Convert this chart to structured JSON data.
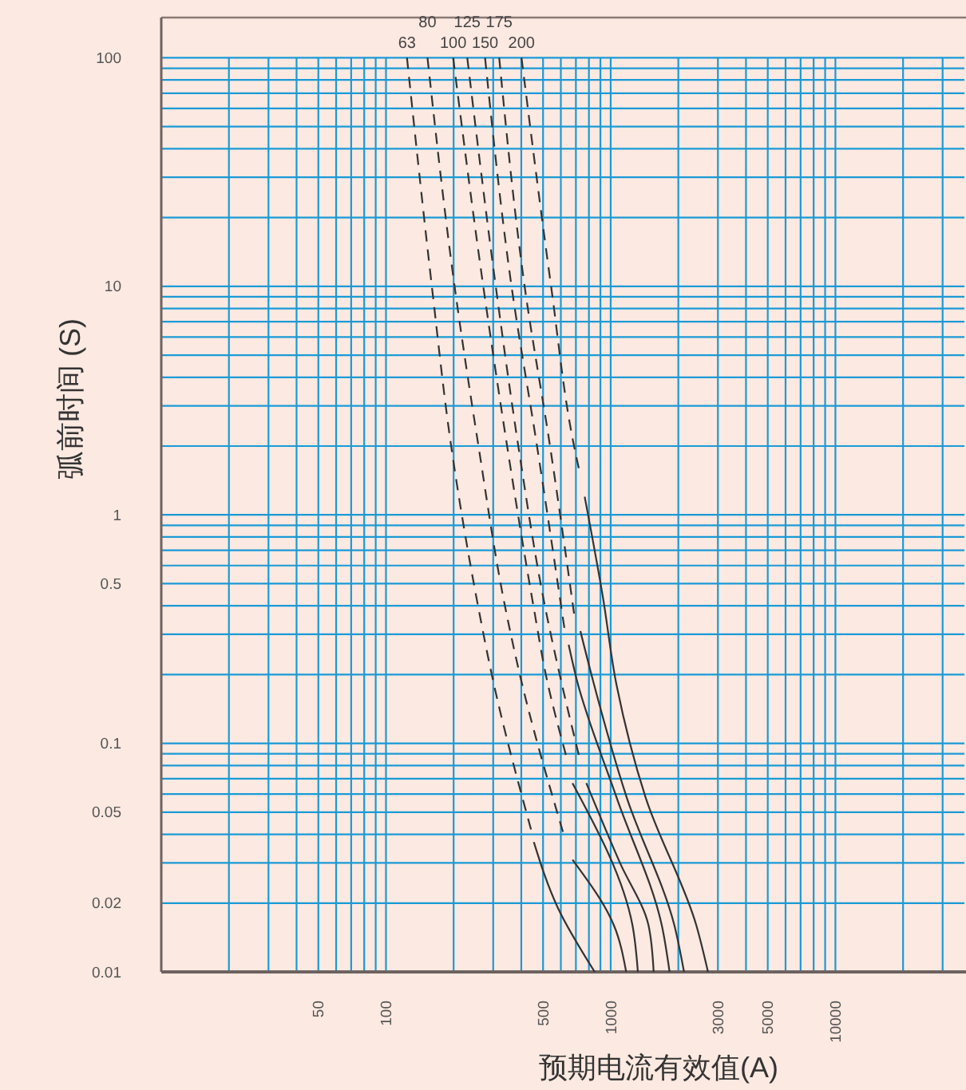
{
  "chart_data": {
    "type": "line",
    "xlabel": "预期电流有效值(A)",
    "ylabel": "弧前时间 (S)",
    "log": "xy",
    "grid": true,
    "xlim": [
      10,
      37500
    ],
    "ylim": [
      0.01,
      150
    ],
    "xticks": [
      {
        "value": 20,
        "label": null
      },
      {
        "value": 30,
        "label": null
      },
      {
        "value": 40,
        "label": null
      },
      50,
      {
        "value": 60,
        "label": null
      },
      {
        "value": 70,
        "label": null
      },
      {
        "value": 80,
        "label": null
      },
      {
        "value": 90,
        "label": null
      },
      100,
      {
        "value": 200,
        "label": null
      },
      {
        "value": 300,
        "label": null
      },
      {
        "value": 400,
        "label": null
      },
      500,
      {
        "value": 600,
        "label": null
      },
      {
        "value": 700,
        "label": null
      },
      {
        "value": 800,
        "label": null
      },
      {
        "value": 900,
        "label": null
      },
      1000,
      {
        "value": 2000,
        "label": null
      },
      3000,
      {
        "value": 4000,
        "label": null
      },
      5000,
      {
        "value": 6000,
        "label": null
      },
      {
        "value": 7000,
        "label": null
      },
      {
        "value": 8000,
        "label": null
      },
      {
        "value": 9000,
        "label": null
      },
      10000,
      {
        "value": 20000,
        "label": null
      },
      {
        "value": 30000,
        "label": null
      }
    ],
    "yticks": [
      0.01,
      0.02,
      {
        "value": 0.03,
        "label": null
      },
      {
        "value": 0.04,
        "label": null
      },
      0.05,
      {
        "value": 0.06,
        "label": null
      },
      {
        "value": 0.07,
        "label": null
      },
      {
        "value": 0.08,
        "label": null
      },
      {
        "value": 0.09,
        "label": null
      },
      0.1,
      {
        "value": 0.2,
        "label": null
      },
      {
        "value": 0.3,
        "label": null
      },
      {
        "value": 0.4,
        "label": null
      },
      0.5,
      {
        "value": 0.6,
        "label": null
      },
      {
        "value": 0.7,
        "label": null
      },
      {
        "value": 0.8,
        "label": null
      },
      {
        "value": 0.9,
        "label": null
      },
      1,
      {
        "value": 2,
        "label": null
      },
      {
        "value": 3,
        "label": null
      },
      {
        "value": 4,
        "label": null
      },
      {
        "value": 5,
        "label": null
      },
      {
        "value": 6,
        "label": null
      },
      {
        "value": 7,
        "label": null
      },
      {
        "value": 8,
        "label": null
      },
      {
        "value": 9,
        "label": null
      },
      10,
      {
        "value": 20,
        "label": null
      },
      {
        "value": 30,
        "label": null
      },
      {
        "value": 40,
        "label": null
      },
      {
        "value": 50,
        "label": null
      },
      {
        "value": 60,
        "label": null
      },
      {
        "value": 70,
        "label": null
      },
      {
        "value": 80,
        "label": null
      },
      {
        "value": 90,
        "label": null
      },
      100
    ],
    "series": [
      {
        "name": "63",
        "color": "#333333",
        "line_style": "dashed",
        "x": [
          124,
          160,
          195,
          258,
          299,
          442
        ],
        "values": [
          100,
          10,
          2,
          0.39,
          0.19,
          0.042
        ]
      },
      {
        "color": "#333333",
        "line_style": "solid",
        "x": [
          455,
          583,
          849
        ],
        "values": [
          0.037,
          0.019,
          0.01
        ]
      },
      {
        "name": "80",
        "color": "#333333",
        "line_style": "dashed",
        "x": [
          153,
          202,
          258,
          340,
          399,
          613
        ],
        "values": [
          100,
          10,
          2,
          0.39,
          0.19,
          0.041
        ]
      },
      {
        "color": "#333333",
        "line_style": "solid",
        "x": [
          676,
          1033,
          1172
        ],
        "values": [
          0.031,
          0.016,
          0.01
        ]
      },
      {
        "name": "100",
        "color": "#333333",
        "line_style": "dashed",
        "x": [
          199,
          271,
          346,
          455,
          520,
          632
        ],
        "values": [
          100,
          10,
          2,
          0.39,
          0.19,
          0.089
        ]
      },
      {
        "color": "#333333",
        "line_style": "solid",
        "x": [
          676,
          1250,
          1321
        ],
        "values": [
          0.067,
          0.016,
          0.01
        ]
      },
      {
        "name": "125",
        "color": "#333333",
        "line_style": "dashed",
        "x": [
          230,
          308,
          388,
          512,
          600,
          721
        ],
        "values": [
          100,
          10,
          2,
          0.39,
          0.19,
          0.089
        ]
      },
      {
        "color": "#333333",
        "line_style": "solid",
        "x": [
          779,
          1100,
          1473,
          1553
        ],
        "values": [
          0.067,
          0.03,
          0.016,
          0.01
        ]
      },
      {
        "name": "150",
        "color": "#333333",
        "line_style": "dashed",
        "x": [
          276,
          362,
          470,
          622
        ],
        "values": [
          100,
          10,
          2,
          0.32
        ]
      },
      {
        "color": "#333333",
        "line_style": "solid",
        "x": [
          650,
          706,
          1062,
          1688,
          1828
        ],
        "values": [
          0.27,
          0.19,
          0.058,
          0.016,
          0.01
        ]
      },
      {
        "name": "175",
        "color": "#333333",
        "line_style": "dashed",
        "x": [
          319,
          414,
          537,
          687
        ],
        "values": [
          100,
          10,
          2,
          0.37
        ]
      },
      {
        "color": "#333333",
        "line_style": "solid",
        "x": [
          733,
          832,
          1178,
          1920,
          2120
        ],
        "values": [
          0.31,
          0.19,
          0.058,
          0.016,
          0.01
        ]
      },
      {
        "name": "200",
        "color": "#333333",
        "line_style": "dashed",
        "x": [
          401,
          543,
          687,
          721
        ],
        "values": [
          100,
          10,
          2,
          1.6
        ]
      },
      {
        "color": "#333333",
        "line_style": "solid",
        "x": [
          766,
          922,
          1062,
          1430,
          2404,
          2710
        ],
        "values": [
          1.2,
          0.44,
          0.18,
          0.058,
          0.016,
          0.01
        ]
      }
    ]
  }
}
